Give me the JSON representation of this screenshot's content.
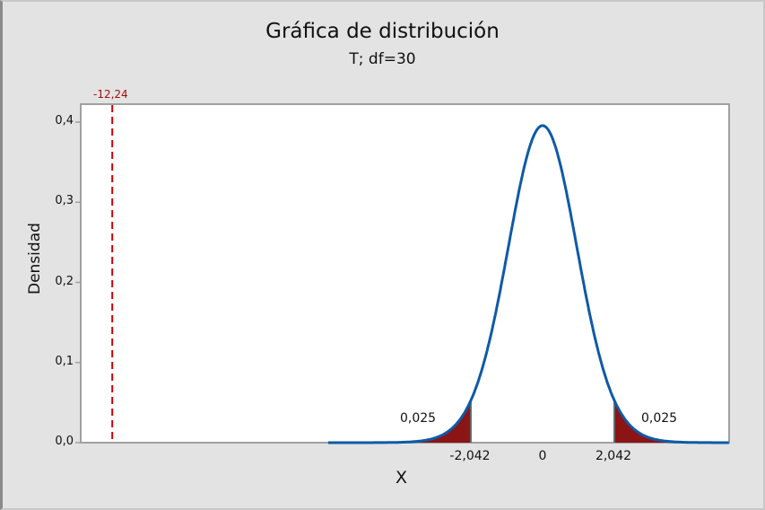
{
  "chart_data": {
    "type": "area",
    "title": "Gráfica de distribución",
    "subtitle": "T; df=30",
    "distribution": "t",
    "df": 30,
    "xlabel": "X",
    "ylabel": "Densidad",
    "xlim": [
      -13.15,
      5.3
    ],
    "ylim": [
      0.0,
      0.4
    ],
    "yticks": [
      "0,0",
      "0,1",
      "0,2",
      "0,3",
      "0,4"
    ],
    "xticks": [
      "-2,042",
      "0",
      "2,042"
    ],
    "xtick_values": [
      -2.042,
      0,
      2.042
    ],
    "shaded_regions": [
      {
        "from": "-inf",
        "to": -2.042,
        "area_label": "0,025",
        "color": "#8b1414"
      },
      {
        "from": 2.042,
        "to": "inf",
        "area_label": "0,025",
        "color": "#8b1414"
      }
    ],
    "reference_line": {
      "x": -12.24,
      "label": "-12,24",
      "style": "dashed",
      "color": "#cc0000"
    },
    "curve_color": "#0e5aa7",
    "peak_density": 0.3956,
    "grid": false,
    "legend": null
  },
  "labels": {
    "title": "Gráfica de distribución",
    "subtitle": "T; df=30",
    "xlabel": "X",
    "ylabel": "Densidad",
    "yticks": [
      "0,0",
      "0,1",
      "0,2",
      "0,3",
      "0,4"
    ],
    "xtick_left": "-2,042",
    "xtick_center": "0",
    "xtick_right": "2,042",
    "left_area": "0,025",
    "right_area": "0,025",
    "ref_label": "-12,24"
  }
}
